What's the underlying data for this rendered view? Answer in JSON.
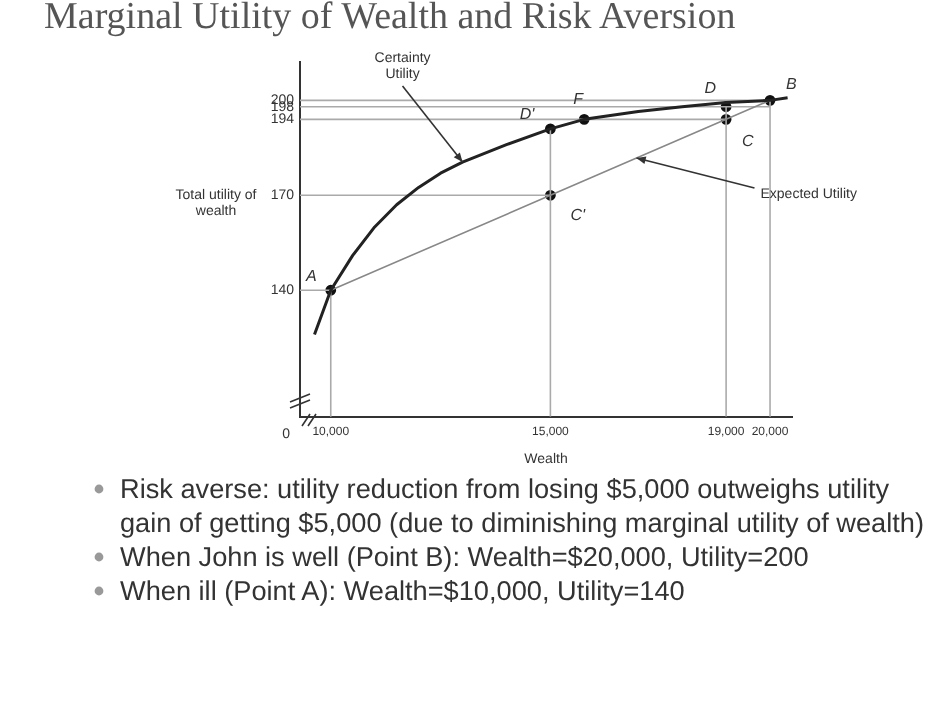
{
  "chart_data": {
    "type": "line",
    "title": "Marginal Utility of Wealth and Risk Aversion",
    "xlabel": "Wealth",
    "ylabel": "Total utility of wealth",
    "xlim": [
      9300,
      20500
    ],
    "xticks": [
      {
        "value": 10000,
        "label": "10,000"
      },
      {
        "value": 15000,
        "label": "15,000"
      },
      {
        "value": 19000,
        "label": "19,000"
      },
      {
        "value": 20000,
        "label": "20,000"
      }
    ],
    "ylim": [
      100,
      212
    ],
    "yticks": [
      140,
      170,
      194,
      198,
      200
    ],
    "grid": false,
    "legend": false,
    "marker": "circle",
    "series": [
      {
        "marker": "none",
        "color": "#222222",
        "x": [
          9630,
          10000,
          10500,
          11000,
          11500,
          12000,
          12500,
          13000,
          14000,
          15000,
          15770,
          17000,
          18000,
          19000,
          20000,
          20400
        ],
        "values": [
          126,
          140,
          151,
          160,
          167,
          172.5,
          177,
          180.5,
          186,
          191,
          194,
          196.5,
          198,
          199.3,
          200,
          200.8
        ]
      },
      {
        "marker": "none",
        "color": "#888888",
        "x": [
          10000,
          15000,
          19000,
          20000
        ],
        "values": [
          140,
          170,
          194,
          200
        ]
      },
      {
        "marker": "none",
        "color": "#aaaaaa",
        "x": [
          9300,
          10000,
          10000
        ],
        "values": [
          140,
          140,
          100
        ]
      },
      {
        "marker": "none",
        "color": "#aaaaaa",
        "x": [
          9300,
          15000
        ],
        "values": [
          170,
          170
        ]
      },
      {
        "marker": "none",
        "color": "#aaaaaa",
        "x": [
          15000,
          15000
        ],
        "values": [
          100,
          191
        ]
      },
      {
        "marker": "none",
        "color": "#aaaaaa",
        "x": [
          9300,
          19000
        ],
        "values": [
          194,
          194
        ]
      },
      {
        "marker": "none",
        "color": "#aaaaaa",
        "x": [
          19000,
          19000
        ],
        "values": [
          100,
          198
        ]
      },
      {
        "marker": "none",
        "color": "#aaaaaa",
        "x": [
          9300,
          20000
        ],
        "values": [
          198,
          198
        ]
      },
      {
        "marker": "none",
        "color": "#aaaaaa",
        "x": [
          9300,
          20000,
          20000
        ],
        "values": [
          200,
          200,
          100
        ]
      },
      {
        "type": "scatter",
        "color": "#111111",
        "x": [
          10000,
          20000,
          19000,
          15000,
          19000,
          15000,
          15770
        ],
        "values": [
          140,
          200,
          194,
          170,
          198,
          191,
          194
        ]
      }
    ],
    "annotations": [
      {
        "text": "Certainty Utility",
        "x": 13000,
        "y": 180.5
      },
      {
        "text": "Expected Utility",
        "x": 16960,
        "y": 181.8
      },
      {
        "text": "A",
        "x": 10000,
        "y": 140
      },
      {
        "text": "B",
        "x": 20000,
        "y": 200
      },
      {
        "text": "C",
        "x": 19000,
        "y": 194
      },
      {
        "text": "C'",
        "x": 15000,
        "y": 170
      },
      {
        "text": "D",
        "x": 19000,
        "y": 198
      },
      {
        "text": "D'",
        "x": 15000,
        "y": 191
      },
      {
        "text": "F",
        "x": 15770,
        "y": 194
      },
      "0",
      "Risk averse: utility reduction from losing $5,000 outweighs utility gain of getting $5,000 (due to diminishing marginal utility of wealth)",
      "When John is well (Point B): Wealth=$20,000, Utility=200",
      "When ill (Point A): Wealth=$10,000, Utility=140"
    ]
  }
}
